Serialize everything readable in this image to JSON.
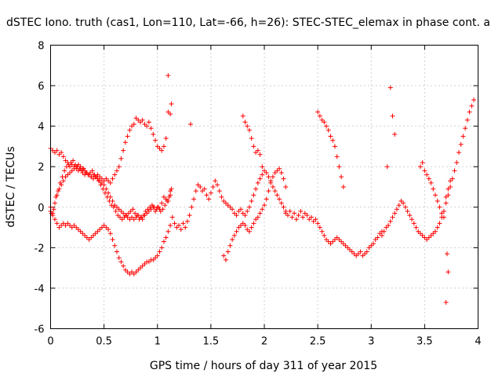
{
  "chart_data": {
    "type": "scatter",
    "title": "dSTEC Iono. truth (cas1, Lon=110, Lat=-66, h=26): STEC-STEC_elemax in phase cont. a",
    "xlabel": "GPS time / hours of day 311 of year 2015",
    "ylabel": "dSTEC / TECUs",
    "xlim": [
      0,
      4
    ],
    "ylim": [
      -6,
      8
    ],
    "grid": true,
    "marker": "+",
    "color": "#ff0000",
    "x_ticks": [
      0,
      0.5,
      1,
      1.5,
      2,
      2.5,
      3,
      3.5,
      4
    ],
    "x_tick_labels": [
      "0",
      "0.5",
      "1",
      "1.5",
      "2",
      "2.5",
      "3",
      "3.5",
      "4"
    ],
    "y_ticks": [
      -6,
      -4,
      -2,
      0,
      2,
      4,
      6,
      8
    ],
    "y_tick_labels": [
      "-6",
      "-4",
      "-2",
      "0",
      "2",
      "4",
      "6",
      "8"
    ],
    "series": [
      {
        "x": [
          0.0,
          0.02,
          0.04,
          0.06,
          0.08,
          0.1,
          0.12,
          0.14,
          0.16,
          0.18,
          0.2,
          0.22,
          0.24,
          0.26,
          0.28,
          0.3,
          0.32,
          0.34,
          0.36,
          0.38,
          0.4,
          0.42,
          0.44,
          0.46,
          0.48,
          0.5,
          0.52,
          0.54,
          0.56,
          0.58,
          0.6,
          0.62,
          0.64,
          0.66,
          0.68,
          0.7,
          0.72,
          0.74,
          0.76,
          0.78,
          0.8,
          0.82,
          0.84,
          0.86,
          0.88,
          0.9,
          0.92,
          0.94,
          0.96,
          0.98,
          1.0,
          1.02,
          1.04,
          1.06,
          1.08,
          1.1,
          1.12,
          0.0,
          0.02,
          0.04,
          0.06,
          0.08,
          0.1,
          0.12,
          0.14,
          0.16,
          0.18,
          0.2,
          0.22,
          0.24,
          0.26,
          0.28,
          0.3,
          0.32,
          0.34,
          0.36,
          0.38,
          0.4,
          0.42,
          0.44,
          0.46,
          0.48,
          0.5,
          0.52,
          0.54,
          0.56,
          0.58,
          0.6,
          0.62,
          0.64,
          0.66,
          0.68,
          0.7,
          0.72,
          0.74,
          0.76,
          0.78,
          0.8,
          0.82,
          0.84,
          0.86,
          0.88,
          0.9,
          0.92,
          0.94,
          0.96,
          0.98,
          1.0,
          1.02,
          1.04,
          1.06,
          1.08,
          1.1,
          1.12,
          0.0,
          0.02,
          0.04,
          0.06,
          0.08,
          0.1,
          0.12,
          0.14,
          0.16,
          0.18,
          0.2,
          0.22,
          0.24,
          0.26,
          0.28,
          0.3,
          0.32,
          0.34,
          0.36,
          0.38,
          0.4,
          0.42,
          0.44,
          0.46,
          0.48,
          0.5,
          0.52,
          0.54,
          0.56,
          0.58,
          0.6,
          0.62,
          0.64,
          0.66,
          0.68,
          0.7,
          0.72,
          0.74,
          0.76,
          0.78,
          0.8,
          0.82,
          0.84,
          0.86,
          0.88,
          0.9,
          0.92,
          0.94,
          0.96,
          0.98,
          1.0,
          1.02,
          1.04,
          1.06,
          1.08,
          1.1,
          1.12,
          0.01,
          0.03,
          0.05,
          0.07,
          0.09,
          0.11,
          0.13,
          0.15,
          0.17,
          0.19,
          0.21,
          0.23,
          0.25,
          0.27,
          0.29,
          0.31,
          0.33,
          0.35,
          0.37,
          0.39,
          0.41,
          0.43,
          0.45,
          0.47,
          0.49,
          0.51,
          0.53,
          0.55,
          0.57,
          0.59,
          0.61,
          0.63,
          0.65,
          0.67,
          0.69,
          0.71,
          0.73,
          0.75,
          0.77,
          0.79,
          0.81,
          0.83,
          0.85,
          0.87,
          0.89,
          0.91,
          0.93,
          0.95,
          0.97,
          0.99,
          1.01,
          1.03,
          1.05,
          1.07,
          1.09,
          1.11,
          1.13,
          1.12,
          1.14,
          1.16,
          1.18,
          1.2,
          1.22,
          1.24,
          1.26,
          1.28,
          1.3,
          1.32,
          1.34,
          1.36,
          1.38,
          1.4,
          1.42,
          1.44,
          1.46,
          1.48,
          1.5,
          1.52,
          1.54,
          1.56,
          1.58,
          1.6,
          1.62,
          1.64,
          1.66,
          1.68,
          1.7,
          1.72,
          1.74,
          1.76,
          1.78,
          1.8,
          1.82,
          1.84,
          1.86,
          1.88,
          1.9,
          1.92,
          1.94,
          1.96,
          1.98,
          2.0,
          2.02,
          2.04,
          2.06,
          2.08,
          2.1,
          2.12,
          2.14,
          2.16,
          2.18,
          2.2,
          1.62,
          1.64,
          1.66,
          1.68,
          1.7,
          1.72,
          1.74,
          1.76,
          1.78,
          1.8,
          1.82,
          1.84,
          1.86,
          1.88,
          1.9,
          1.92,
          1.94,
          1.96,
          1.98,
          2.0,
          2.02,
          2.04,
          2.06,
          2.08,
          2.1,
          2.12,
          2.14,
          2.16,
          2.18,
          2.2,
          1.8,
          1.82,
          1.84,
          1.86,
          1.88,
          1.9,
          1.92,
          1.94,
          1.96,
          1.98,
          2.2,
          2.22,
          2.24,
          2.26,
          2.28,
          2.3,
          2.32,
          2.34,
          2.36,
          2.38,
          2.4,
          2.42,
          2.44,
          2.46,
          2.48,
          2.5,
          2.52,
          2.54,
          2.56,
          2.58,
          2.6,
          2.62,
          2.64,
          2.66,
          2.68,
          2.7,
          2.72,
          2.74,
          2.76,
          2.78,
          2.8,
          2.82,
          2.84,
          2.86,
          2.88,
          2.9,
          2.92,
          2.94,
          2.96,
          2.98,
          3.0,
          3.02,
          3.04,
          3.06,
          3.08,
          3.1,
          2.5,
          2.52,
          2.54,
          2.56,
          2.58,
          2.6,
          2.62,
          2.64,
          2.66,
          2.68,
          2.7,
          2.72,
          2.74,
          3.1,
          3.12,
          3.14,
          3.16,
          3.18,
          3.2,
          3.22,
          3.24,
          3.26,
          3.28,
          3.3,
          3.32,
          3.34,
          3.36,
          3.38,
          3.4,
          3.42,
          3.44,
          3.46,
          3.48,
          3.5,
          3.52,
          3.54,
          3.56,
          3.58,
          3.6,
          3.62,
          3.64,
          3.66,
          3.68,
          3.7,
          3.72,
          3.74,
          3.76,
          3.78,
          3.8,
          3.82,
          3.84,
          3.86,
          3.88,
          3.9,
          3.92,
          3.94,
          3.96,
          3.46,
          3.48,
          3.5,
          3.52,
          3.54,
          3.56,
          3.58,
          3.6,
          3.62,
          3.64,
          3.66,
          3.68,
          3.7,
          3.72,
          3.74,
          1.13,
          1.31,
          1.1,
          3.15,
          3.7,
          3.72,
          3.71,
          3.18,
          3.2,
          3.22
        ],
        "y": [
          2.9,
          2.8,
          2.7,
          2.8,
          2.6,
          2.7,
          2.5,
          2.3,
          2.2,
          2.0,
          2.1,
          2.0,
          1.9,
          1.8,
          1.9,
          1.7,
          1.6,
          1.7,
          1.6,
          1.5,
          1.4,
          1.5,
          1.4,
          1.3,
          1.2,
          1.1,
          0.9,
          0.7,
          0.5,
          0.3,
          0.1,
          0.0,
          -0.1,
          -0.2,
          -0.3,
          -0.4,
          -0.5,
          -0.6,
          -0.5,
          -0.6,
          -0.5,
          -0.4,
          -0.5,
          -0.6,
          -0.4,
          -0.3,
          -0.2,
          -0.1,
          0.0,
          -0.2,
          0.0,
          -0.1,
          0.2,
          0.5,
          0.4,
          0.3,
          0.8,
          -0.2,
          -0.4,
          -0.6,
          -0.8,
          -1.0,
          -0.9,
          -0.8,
          -0.9,
          -0.8,
          -0.9,
          -1.0,
          -0.9,
          -1.0,
          -1.1,
          -1.2,
          -1.3,
          -1.4,
          -1.5,
          -1.6,
          -1.5,
          -1.4,
          -1.3,
          -1.2,
          -1.1,
          -1.0,
          -0.9,
          -1.0,
          -1.1,
          -1.3,
          -1.6,
          -1.9,
          -2.2,
          -2.5,
          -2.7,
          -2.9,
          -3.1,
          -3.2,
          -3.3,
          -3.2,
          -3.3,
          -3.2,
          -3.1,
          -3.0,
          -2.9,
          -2.8,
          -2.7,
          -2.7,
          -2.6,
          -2.6,
          -2.5,
          -2.4,
          -2.2,
          -2.0,
          -1.7,
          -1.5,
          -1.2,
          -0.9,
          0.0,
          -0.3,
          0.2,
          0.6,
          0.9,
          1.1,
          1.3,
          1.5,
          1.6,
          1.7,
          1.8,
          1.9,
          2.0,
          2.1,
          2.0,
          1.9,
          1.8,
          1.7,
          1.6,
          1.5,
          1.6,
          1.5,
          1.6,
          1.5,
          1.4,
          1.3,
          1.4,
          1.3,
          1.2,
          1.4,
          1.6,
          1.8,
          2.0,
          2.4,
          2.8,
          3.2,
          3.5,
          3.8,
          4.0,
          4.1,
          4.4,
          4.3,
          4.2,
          4.3,
          4.1,
          4.0,
          4.2,
          3.9,
          3.6,
          3.3,
          3.0,
          2.9,
          2.8,
          3.0,
          3.4,
          4.7,
          4.6,
          -0.3,
          -0.1,
          0.5,
          0.8,
          1.2,
          1.5,
          1.8,
          2.0,
          2.1,
          2.2,
          2.3,
          2.1,
          2.0,
          1.9,
          1.8,
          1.9,
          1.7,
          1.6,
          1.7,
          1.8,
          1.6,
          1.5,
          1.3,
          1.1,
          0.9,
          0.7,
          0.5,
          0.3,
          0.1,
          0.0,
          -0.2,
          -0.4,
          -0.5,
          -0.6,
          -0.5,
          -0.4,
          -0.3,
          -0.2,
          -0.1,
          -0.3,
          -0.4,
          -0.6,
          -0.5,
          -0.4,
          -0.2,
          -0.1,
          0.0,
          0.1,
          0.0,
          -0.1,
          0.0,
          -0.2,
          -0.1,
          0.1,
          0.3,
          0.5,
          0.9,
          0.6,
          -0.5,
          -0.8,
          -1.0,
          -0.9,
          -1.1,
          -0.8,
          -1.0,
          -0.7,
          -0.4,
          0.0,
          0.4,
          0.8,
          1.1,
          1.0,
          0.8,
          0.9,
          0.6,
          0.4,
          0.7,
          1.0,
          1.3,
          1.1,
          0.8,
          0.5,
          0.3,
          0.2,
          0.1,
          0.0,
          -0.1,
          -0.3,
          -0.4,
          -0.2,
          -0.1,
          -0.3,
          -0.4,
          -0.2,
          0.0,
          0.3,
          0.6,
          0.9,
          1.2,
          1.4,
          1.6,
          1.8,
          1.7,
          1.5,
          1.3,
          1.0,
          0.8,
          0.6,
          0.4,
          0.2,
          0.0,
          -0.2,
          -2.4,
          -2.6,
          -2.2,
          -1.9,
          -1.6,
          -1.4,
          -1.2,
          -1.0,
          -0.9,
          -0.8,
          -0.9,
          -1.1,
          -1.2,
          -1.0,
          -0.8,
          -0.6,
          -0.5,
          -0.3,
          -0.1,
          0.1,
          0.4,
          0.8,
          1.2,
          1.5,
          1.7,
          1.8,
          1.9,
          1.7,
          1.4,
          1.0,
          4.5,
          4.2,
          4.0,
          3.8,
          3.4,
          3.0,
          2.7,
          2.8,
          2.6,
          2.0,
          -0.3,
          -0.4,
          -0.2,
          -0.5,
          -0.3,
          -0.6,
          -0.4,
          -0.2,
          -0.5,
          -0.3,
          -0.4,
          -0.6,
          -0.5,
          -0.7,
          -0.6,
          -0.8,
          -1.0,
          -1.2,
          -1.4,
          -1.6,
          -1.7,
          -1.8,
          -1.7,
          -1.6,
          -1.5,
          -1.6,
          -1.7,
          -1.8,
          -1.9,
          -2.0,
          -2.1,
          -2.2,
          -2.3,
          -2.4,
          -2.3,
          -2.2,
          -2.4,
          -2.3,
          -2.2,
          -2.0,
          -1.9,
          -1.8,
          -1.6,
          -1.5,
          -1.3,
          -1.2,
          4.7,
          4.5,
          4.3,
          4.2,
          4.0,
          3.8,
          3.5,
          3.3,
          3.0,
          2.5,
          2.0,
          1.5,
          1.0,
          -1.4,
          -1.2,
          -1.0,
          -0.9,
          -0.7,
          -0.5,
          -0.3,
          -0.1,
          0.1,
          0.3,
          0.2,
          0.0,
          -0.2,
          -0.4,
          -0.6,
          -0.8,
          -1.0,
          -1.2,
          -1.3,
          -1.4,
          -1.5,
          -1.6,
          -1.5,
          -1.4,
          -1.3,
          -1.2,
          -1.0,
          -0.8,
          -0.5,
          -0.2,
          0.2,
          0.6,
          1.0,
          1.4,
          1.8,
          2.2,
          2.7,
          3.1,
          3.5,
          3.9,
          4.3,
          4.7,
          5.0,
          5.3,
          2.0,
          2.2,
          1.8,
          1.6,
          1.4,
          1.2,
          0.9,
          0.6,
          0.3,
          0.0,
          -0.3,
          -0.5,
          0.5,
          0.9,
          1.3,
          5.1,
          4.1,
          6.5,
          2.0,
          -4.7,
          -3.2,
          -2.3,
          5.9,
          4.5,
          3.6
        ]
      }
    ]
  }
}
